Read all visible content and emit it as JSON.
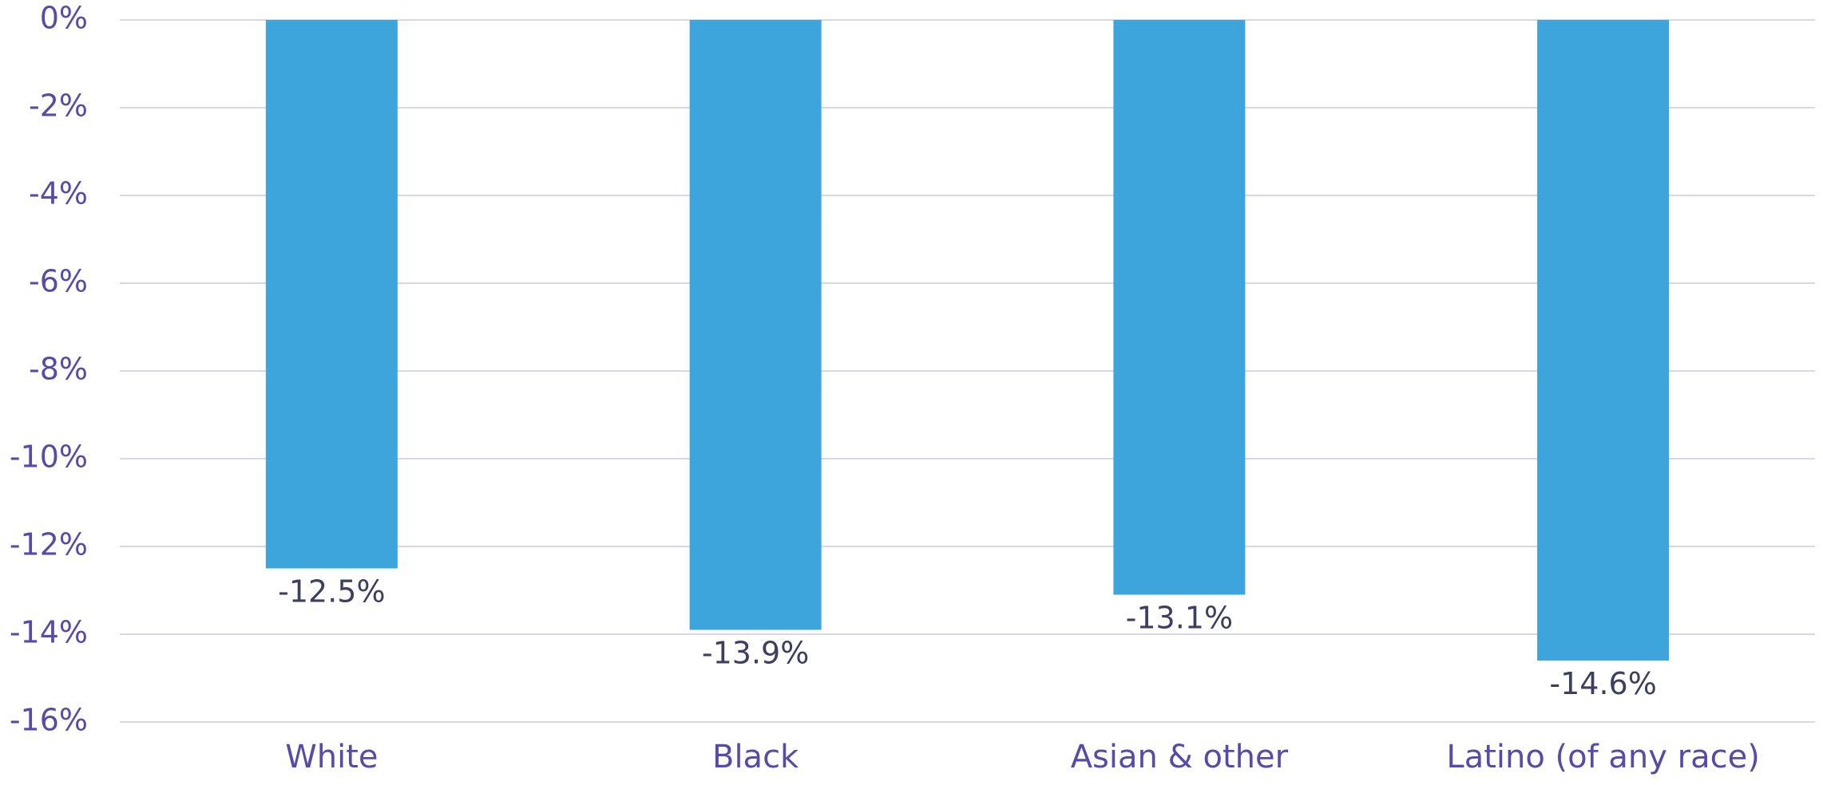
{
  "chart_data": {
    "type": "bar",
    "categories": [
      "White",
      "Black",
      "Asian & other",
      "Latino (of any race)"
    ],
    "values": [
      -12.5,
      -13.9,
      -13.1,
      -14.6
    ],
    "data_labels": [
      "-12.5%",
      "-13.9%",
      "-13.1%",
      "-14.6%"
    ],
    "y_ticks": [
      0,
      -2,
      -4,
      -6,
      -8,
      -10,
      -12,
      -14,
      -16
    ],
    "y_tick_labels": [
      "0%",
      "-2%",
      "-4%",
      "-6%",
      "-8%",
      "-10%",
      "-12%",
      "-14%",
      "-16%"
    ],
    "ylim": [
      -16,
      0
    ],
    "grid": true,
    "legend": "none",
    "colors": {
      "bar": "#3da5dc",
      "tick_text": "#5a4aa8",
      "label_text": "#3e3e5e",
      "grid": "#d6d8e6"
    }
  }
}
